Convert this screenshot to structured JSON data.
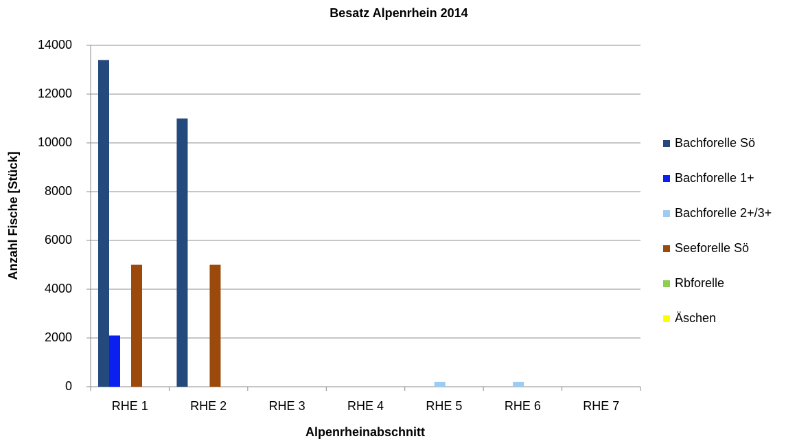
{
  "chart_data": {
    "type": "bar",
    "title": "Besatz Alpenrhein 2014",
    "x_label": "Alpenrheinabschnitt",
    "y_label": "Anzahl Fische  [Stück]",
    "categories": [
      "RHE 1",
      "RHE 2",
      "RHE 3",
      "RHE 4",
      "RHE 5",
      "RHE 6",
      "RHE 7"
    ],
    "series": [
      {
        "name": "Bachforelle Sö",
        "color": "#24497d",
        "values": [
          13400,
          11000,
          0,
          0,
          0,
          0,
          0
        ]
      },
      {
        "name": "Bachforelle 1+",
        "color": "#0a1ff0",
        "values": [
          2100,
          0,
          0,
          0,
          0,
          0,
          0
        ]
      },
      {
        "name": "Bachforelle 2+/3+",
        "color": "#9dcbf2",
        "values": [
          0,
          0,
          0,
          0,
          200,
          200,
          0
        ]
      },
      {
        "name": "Seeforelle Sö",
        "color": "#9c4a0c",
        "values": [
          5000,
          5000,
          0,
          0,
          0,
          0,
          0
        ]
      },
      {
        "name": "Rbforelle",
        "color": "#8ecf4f",
        "values": [
          0,
          0,
          0,
          0,
          0,
          0,
          0
        ]
      },
      {
        "name": "Äschen",
        "color": "#ffff00",
        "values": [
          0,
          0,
          0,
          0,
          0,
          0,
          0
        ]
      }
    ],
    "ylim": [
      0,
      14000
    ],
    "yticks": [
      0,
      2000,
      4000,
      6000,
      8000,
      10000,
      12000,
      14000
    ],
    "grid": true,
    "legend": "right"
  }
}
